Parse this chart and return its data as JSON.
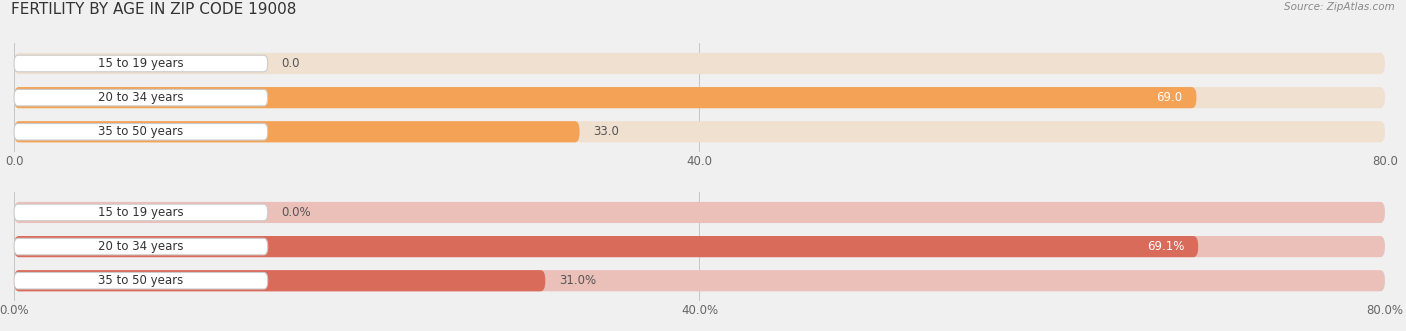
{
  "title": "FERTILITY BY AGE IN ZIP CODE 19008",
  "source": "Source: ZipAtlas.com",
  "chart1": {
    "categories": [
      "15 to 19 years",
      "20 to 34 years",
      "35 to 50 years"
    ],
    "values": [
      0.0,
      69.0,
      33.0
    ],
    "bar_color": "#F4A255",
    "bar_bg_color": "#F0E0D0",
    "label_values": [
      "0.0",
      "69.0",
      "33.0"
    ],
    "xlim": [
      0,
      80
    ],
    "xticks": [
      0.0,
      40.0,
      80.0
    ],
    "xtick_labels": [
      "0.0",
      "40.0",
      "80.0"
    ]
  },
  "chart2": {
    "categories": [
      "15 to 19 years",
      "20 to 34 years",
      "35 to 50 years"
    ],
    "values": [
      0.0,
      69.1,
      31.0
    ],
    "bar_color": "#D96B5A",
    "bar_bg_color": "#EAC0B8",
    "label_values": [
      "0.0%",
      "69.1%",
      "31.0%"
    ],
    "xlim": [
      0,
      80
    ],
    "xticks": [
      0.0,
      40.0,
      80.0
    ],
    "xtick_labels": [
      "0.0%",
      "40.0%",
      "80.0%"
    ]
  },
  "bg_color": "#f0f0f0",
  "bar_height": 0.62,
  "title_fontsize": 11,
  "axis_fontsize": 8.5,
  "category_fontsize": 8.5,
  "value_fontsize": 8.5,
  "pill_text_color": "#333333",
  "value_color_inside": "#ffffff",
  "value_color_outside": "#555555",
  "grid_color": "#bbbbbb",
  "pill_facecolor": "#ffffff",
  "pill_edgecolor": "#cccccc"
}
